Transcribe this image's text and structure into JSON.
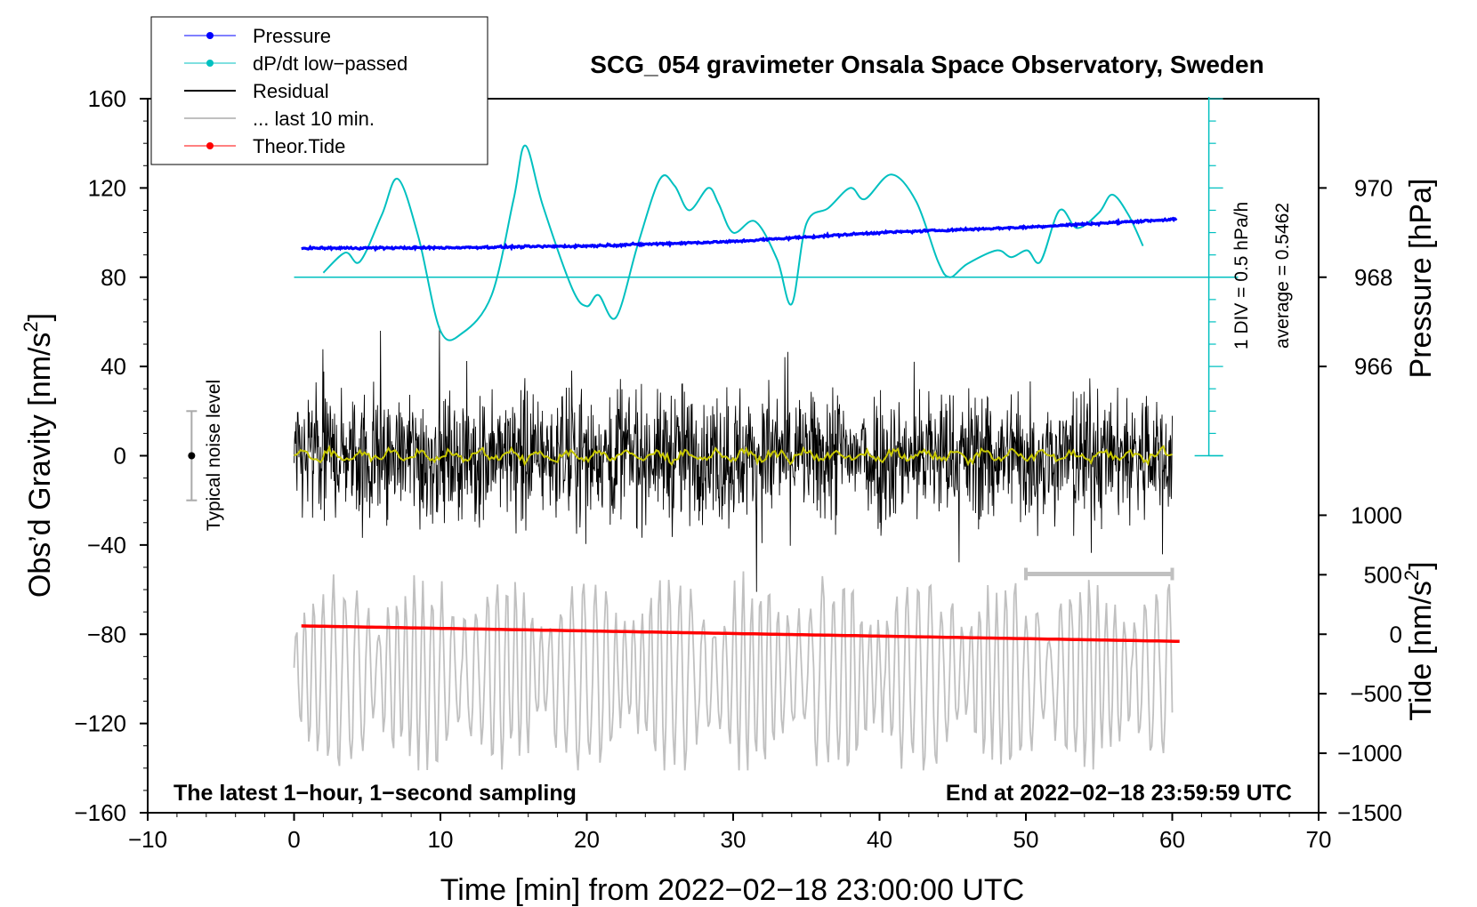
{
  "chart_data": {
    "type": "line",
    "title": "SCG_054 gravimeter Onsala Space Observatory, Sweden",
    "xlabel": "Time [min] from 2022−02−18 23:00:00 UTC",
    "ylabel_left": "Obs’d Gravity [nm/s",
    "ylabel_left_sup": "2",
    "ylabel_left_end": "]",
    "ylabel_right_pressure": "Pressure [hPa]",
    "ylabel_right_tide": "Tide [nm/s",
    "ylabel_right_tide_sup": "2",
    "ylabel_right_tide_end": "]",
    "xlim": [
      -10,
      70
    ],
    "ylim": [
      -160,
      160
    ],
    "x_ticks": [
      "−10",
      "0",
      "10",
      "20",
      "30",
      "40",
      "50",
      "60",
      "70"
    ],
    "x_tick_values": [
      -10,
      0,
      10,
      20,
      30,
      40,
      50,
      60,
      70
    ],
    "y_ticks": [
      "160",
      "120",
      "80",
      "40",
      "0",
      "−40",
      "−80",
      "−120",
      "−160"
    ],
    "y_tick_values": [
      160,
      120,
      80,
      40,
      0,
      -40,
      -80,
      -120,
      -160
    ],
    "pressure_ticks": [
      "970",
      "968",
      "966"
    ],
    "pressure_tick_values": [
      970,
      968,
      966
    ],
    "pressure_scale": {
      "gravity_at_968": 80,
      "gravity_per_hpa": 20
    },
    "tide_ticks": [
      "1000",
      "500",
      "0",
      "−500",
      "−1000",
      "−1500"
    ],
    "tide_tick_values": [
      1000,
      500,
      0,
      -500,
      -1000,
      -1500
    ],
    "tide_scale": {
      "gravity_at_zero": -80,
      "gravity_per_unit": 0.05333
    },
    "legend": {
      "position": "top-left",
      "entries": [
        {
          "label": "Pressure",
          "color": "#0000ff",
          "marker": true
        },
        {
          "label": "dP/dt low−passed",
          "color": "#00c0c0",
          "marker": true
        },
        {
          "label": "Residual",
          "color": "#000000",
          "marker": false
        },
        {
          "label": "... last 10 min.",
          "color": "#c0c0c0",
          "marker": false
        },
        {
          "label": "Theor.Tide",
          "color": "#ff0000",
          "marker": true
        }
      ]
    },
    "annotations": {
      "noise_label": "Typical noise level",
      "noise_center": 0,
      "noise_halfwidth": 20,
      "noise_x": -7,
      "div_label": "1 DIV = 0.5 hPa/h",
      "average_label": "average = 0.5462",
      "bottom_left": "The latest 1−hour, 1−second sampling",
      "bottom_right": "End at 2022−02−18 23:59:59 UTC",
      "ten_min_bar": {
        "x0": 50,
        "x1": 60,
        "y": -53
      }
    },
    "series": [
      {
        "name": "Pressure",
        "color": "#0000ff",
        "units": "hPa",
        "x": [
          0.5,
          10,
          20,
          30,
          40,
          50,
          60.3
        ],
        "values": [
          968.65,
          968.66,
          968.7,
          968.8,
          969.0,
          969.12,
          969.3
        ]
      },
      {
        "name": "dP/dt low-passed",
        "color": "#00c0c0",
        "units": "gravity-plot units",
        "baseline": 80,
        "x": [
          2,
          3.5,
          4.5,
          6,
          7.1,
          8.5,
          10,
          11.5,
          13.5,
          15,
          15.8,
          17,
          19,
          20,
          20.8,
          22,
          23.5,
          25,
          26,
          27,
          28.3,
          29,
          30,
          31.5,
          33,
          34,
          35,
          36.5,
          38,
          39,
          40.8,
          42.5,
          44,
          44.8,
          46,
          48,
          49,
          50.1,
          51,
          52.3,
          53.5,
          55,
          55.9,
          57,
          58
        ],
        "values": [
          82,
          91,
          87,
          108,
          124,
          98,
          56,
          55,
          72,
          115,
          139,
          112,
          75,
          67,
          72,
          62,
          95,
          124,
          121,
          110,
          120,
          113,
          100,
          105,
          88,
          68,
          104,
          111,
          120,
          115,
          126,
          114,
          87,
          80,
          86,
          92,
          89,
          92,
          87,
          110,
          102,
          109,
          117,
          108,
          94
        ]
      },
      {
        "name": "Residual",
        "color": "#000000",
        "units": "nm/s2",
        "x_range": [
          0,
          60
        ],
        "amplitude_rms": 14,
        "max": 58,
        "min": -61
      },
      {
        "name": "Residual smoothed",
        "color": "#c8c800",
        "units": "nm/s2",
        "x_range": [
          0,
          60
        ],
        "amplitude": 3
      },
      {
        "name": "... last 10 min.",
        "color": "#c0c0c0",
        "units": "nm/s2 (offset)",
        "x_range": [
          0,
          60
        ],
        "center": -98,
        "max": -44,
        "min": -141
      },
      {
        "name": "Theor.Tide",
        "color": "#ff0000",
        "units": "nm/s2",
        "x": [
          0.5,
          60.5
        ],
        "values": [
          70,
          -60
        ]
      }
    ]
  }
}
